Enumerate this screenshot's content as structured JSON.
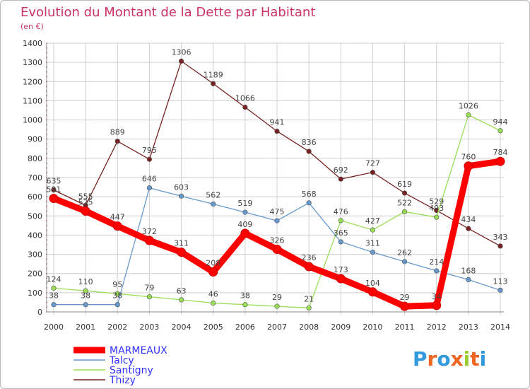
{
  "chart_data": {
    "type": "line",
    "title": "Evolution du Montant de la Dette par Habitant",
    "subtitle": "(en €)",
    "xlabel": "",
    "ylabel": "",
    "x": [
      "2000",
      "2001",
      "2002",
      "2003",
      "2004",
      "2005",
      "2006",
      "2007",
      "2008",
      "2009",
      "2010",
      "2011",
      "2012",
      "2013",
      "2014"
    ],
    "ylim": [
      0,
      1400
    ],
    "yticks": [
      "0",
      "100",
      "200",
      "300",
      "400",
      "500",
      "600",
      "700",
      "800",
      "900",
      "1000",
      "1100",
      "1200",
      "1300",
      "1400"
    ],
    "grid": true,
    "legend_position": "bottom-left",
    "series": [
      {
        "name": "MARMEAUX",
        "color": "#ff0000",
        "values": [
          591,
          525,
          447,
          372,
          311,
          208,
          409,
          326,
          236,
          173,
          104,
          29,
          34,
          760,
          784
        ],
        "labels": [
          "591",
          "525",
          "447",
          "372",
          "311",
          "208",
          "409",
          "326",
          "236",
          "173",
          "104",
          "29",
          "34",
          "760",
          "784"
        ]
      },
      {
        "name": "Talcy",
        "color": "#6699cc",
        "values": [
          38,
          38,
          38,
          646,
          603,
          562,
          519,
          475,
          568,
          365,
          311,
          262,
          214,
          168,
          113
        ],
        "labels": [
          "38",
          "38",
          "38",
          "646",
          "603",
          "562",
          "519",
          "475",
          "568",
          "365",
          "311",
          "262",
          "214",
          "168",
          "113"
        ]
      },
      {
        "name": "Santigny",
        "color": "#99dd55",
        "values": [
          124,
          110,
          95,
          79,
          63,
          46,
          38,
          29,
          21,
          476,
          427,
          522,
          493,
          1026,
          944
        ],
        "labels": [
          "124",
          "110",
          "95",
          "79",
          "63",
          "46",
          "38",
          "29",
          "21",
          "476",
          "427",
          "522",
          "493",
          "1026",
          "944"
        ]
      },
      {
        "name": "Thizy",
        "color": "#772222",
        "values": [
          635,
          555,
          889,
          795,
          1306,
          1189,
          1066,
          941,
          836,
          692,
          727,
          619,
          529,
          434,
          343
        ],
        "labels": [
          "635",
          "555",
          "889",
          "795",
          "1306",
          "1189",
          "1066",
          "941",
          "836",
          "692",
          "727",
          "619",
          "529",
          "434",
          "343"
        ]
      }
    ]
  },
  "colors": {
    "title": "#cc3366",
    "legend_text": "#3333ff",
    "grid": "#cfcfcf",
    "axis_text": "#333333",
    "label_text": "#444444"
  },
  "logo": {
    "text": "Proxiti",
    "letter_colors": [
      "#3399dd",
      "#ee6622",
      "#3399dd",
      "#ee6622",
      "#99cc33",
      "#ee6622",
      "#3399dd"
    ]
  }
}
